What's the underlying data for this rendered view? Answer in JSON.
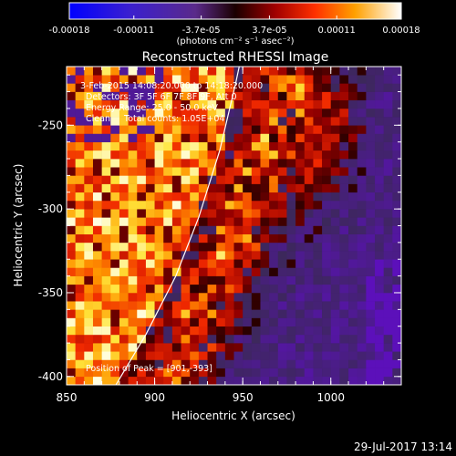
{
  "colorbar": {
    "tick_labels": [
      "-0.00018",
      "-0.00011",
      "-3.7e-05",
      "3.7e-05",
      "0.00011",
      "0.00018"
    ],
    "tick_values": [
      -0.00018,
      -0.00011,
      -3.7e-05,
      3.7e-05,
      0.00011,
      0.00018
    ],
    "range": [
      -0.00018,
      0.00018
    ],
    "units_label": "(photons cm⁻² s⁻¹ asec⁻²)"
  },
  "chart_data": {
    "type": "heatmap",
    "title": "Reconstructed RHESSI Image",
    "xlabel": "Heliocentric X (arcsec)",
    "ylabel": "Heliocentric Y (arcsec)",
    "xlim": [
      850,
      1040
    ],
    "ylim": [
      -405,
      -215
    ],
    "x_ticks": [
      850,
      900,
      950,
      1000
    ],
    "y_ticks": [
      -250,
      -300,
      -350,
      -400
    ],
    "x_tick_labels": [
      "850",
      "900",
      "950",
      "1000"
    ],
    "y_tick_labels": [
      "-250",
      "-300",
      "-350",
      "-400"
    ],
    "grid": false,
    "annotations": [
      "3-Feb-2015 14:08:20.000 to 14:18:20.000",
      "Detectors: 3F 5F 6F 7F 8F 9F, Att 0",
      "Energy Range: 25.0 - 50.0 keV",
      "Clean     Total counts: 1.05E+04",
      "Position of Peak = [901,-393]"
    ],
    "limb_curve": [
      [
        878,
        -405
      ],
      [
        895,
        -375
      ],
      [
        912,
        -340
      ],
      [
        925,
        -305
      ],
      [
        937,
        -265
      ],
      [
        946,
        -225
      ],
      [
        948,
        -215
      ]
    ],
    "colormap": "red-temperature with blue negatives",
    "grid_resolution_arcsec": 5
  },
  "footer": {
    "timestamp": "29-Jul-2017 13:14"
  }
}
